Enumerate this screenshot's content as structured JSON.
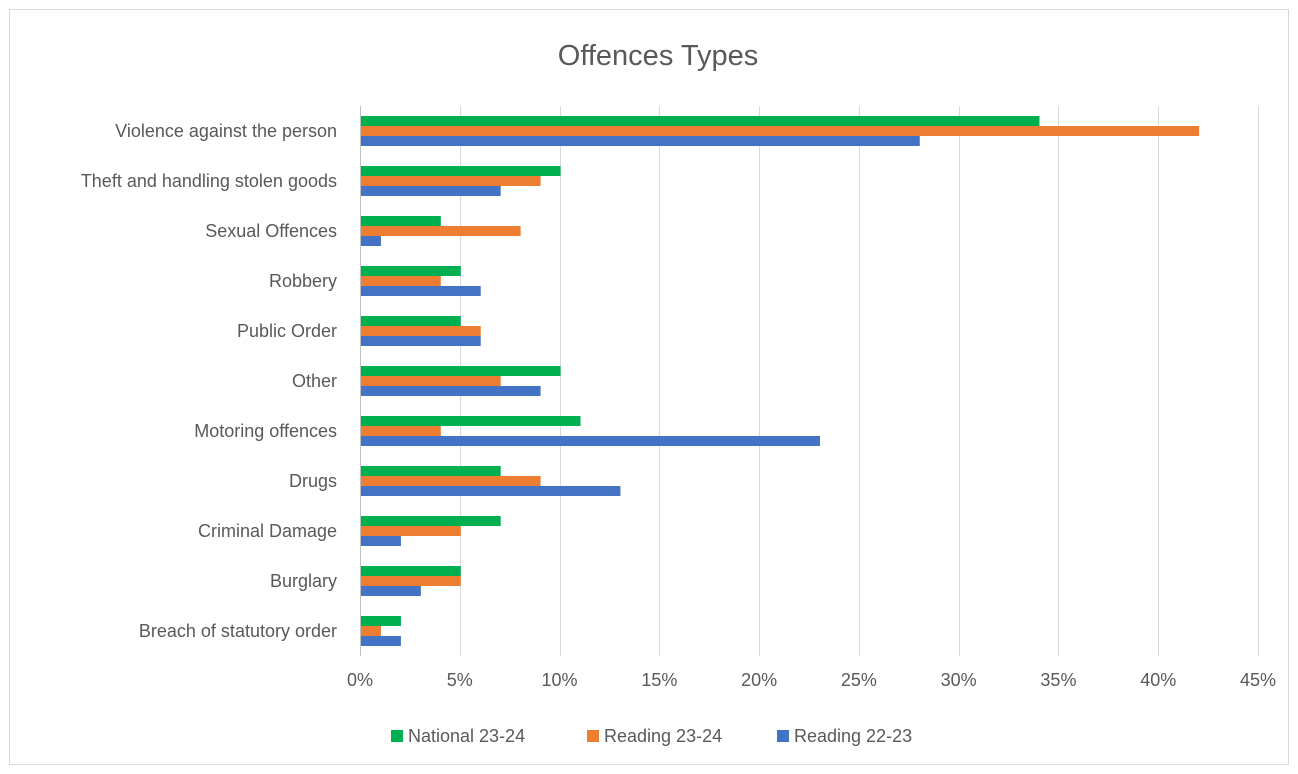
{
  "chart_data": {
    "type": "bar",
    "orientation": "horizontal",
    "title": "Offences Types",
    "xlabel": "",
    "ylabel": "",
    "categories": [
      "Violence against the person",
      "Theft and handling stolen goods",
      "Sexual Offences",
      "Robbery",
      "Public Order",
      "Other",
      "Motoring offences",
      "Drugs",
      "Criminal Damage",
      "Burglary",
      "Breach of statutory order"
    ],
    "series": [
      {
        "name": "National 23-24",
        "color": "#00b050",
        "values": [
          34,
          10,
          4,
          5,
          5,
          10,
          11,
          7,
          7,
          5,
          2
        ]
      },
      {
        "name": "Reading 23-24",
        "color": "#ed7d31",
        "values": [
          42,
          9,
          8,
          4,
          6,
          7,
          4,
          9,
          5,
          5,
          1
        ]
      },
      {
        "name": "Reading 22-23",
        "color": "#4472c4",
        "values": [
          28,
          7,
          1,
          6,
          6,
          9,
          23,
          13,
          2,
          3,
          2
        ]
      }
    ],
    "xlim": [
      0,
      45
    ],
    "ticks": [
      0,
      5,
      10,
      15,
      20,
      25,
      30,
      35,
      40,
      45
    ],
    "tick_labels": [
      "0%",
      "5%",
      "10%",
      "15%",
      "20%",
      "25%",
      "30%",
      "35%",
      "40%",
      "45%"
    ],
    "grid": "vertical",
    "legend_position": "bottom"
  }
}
